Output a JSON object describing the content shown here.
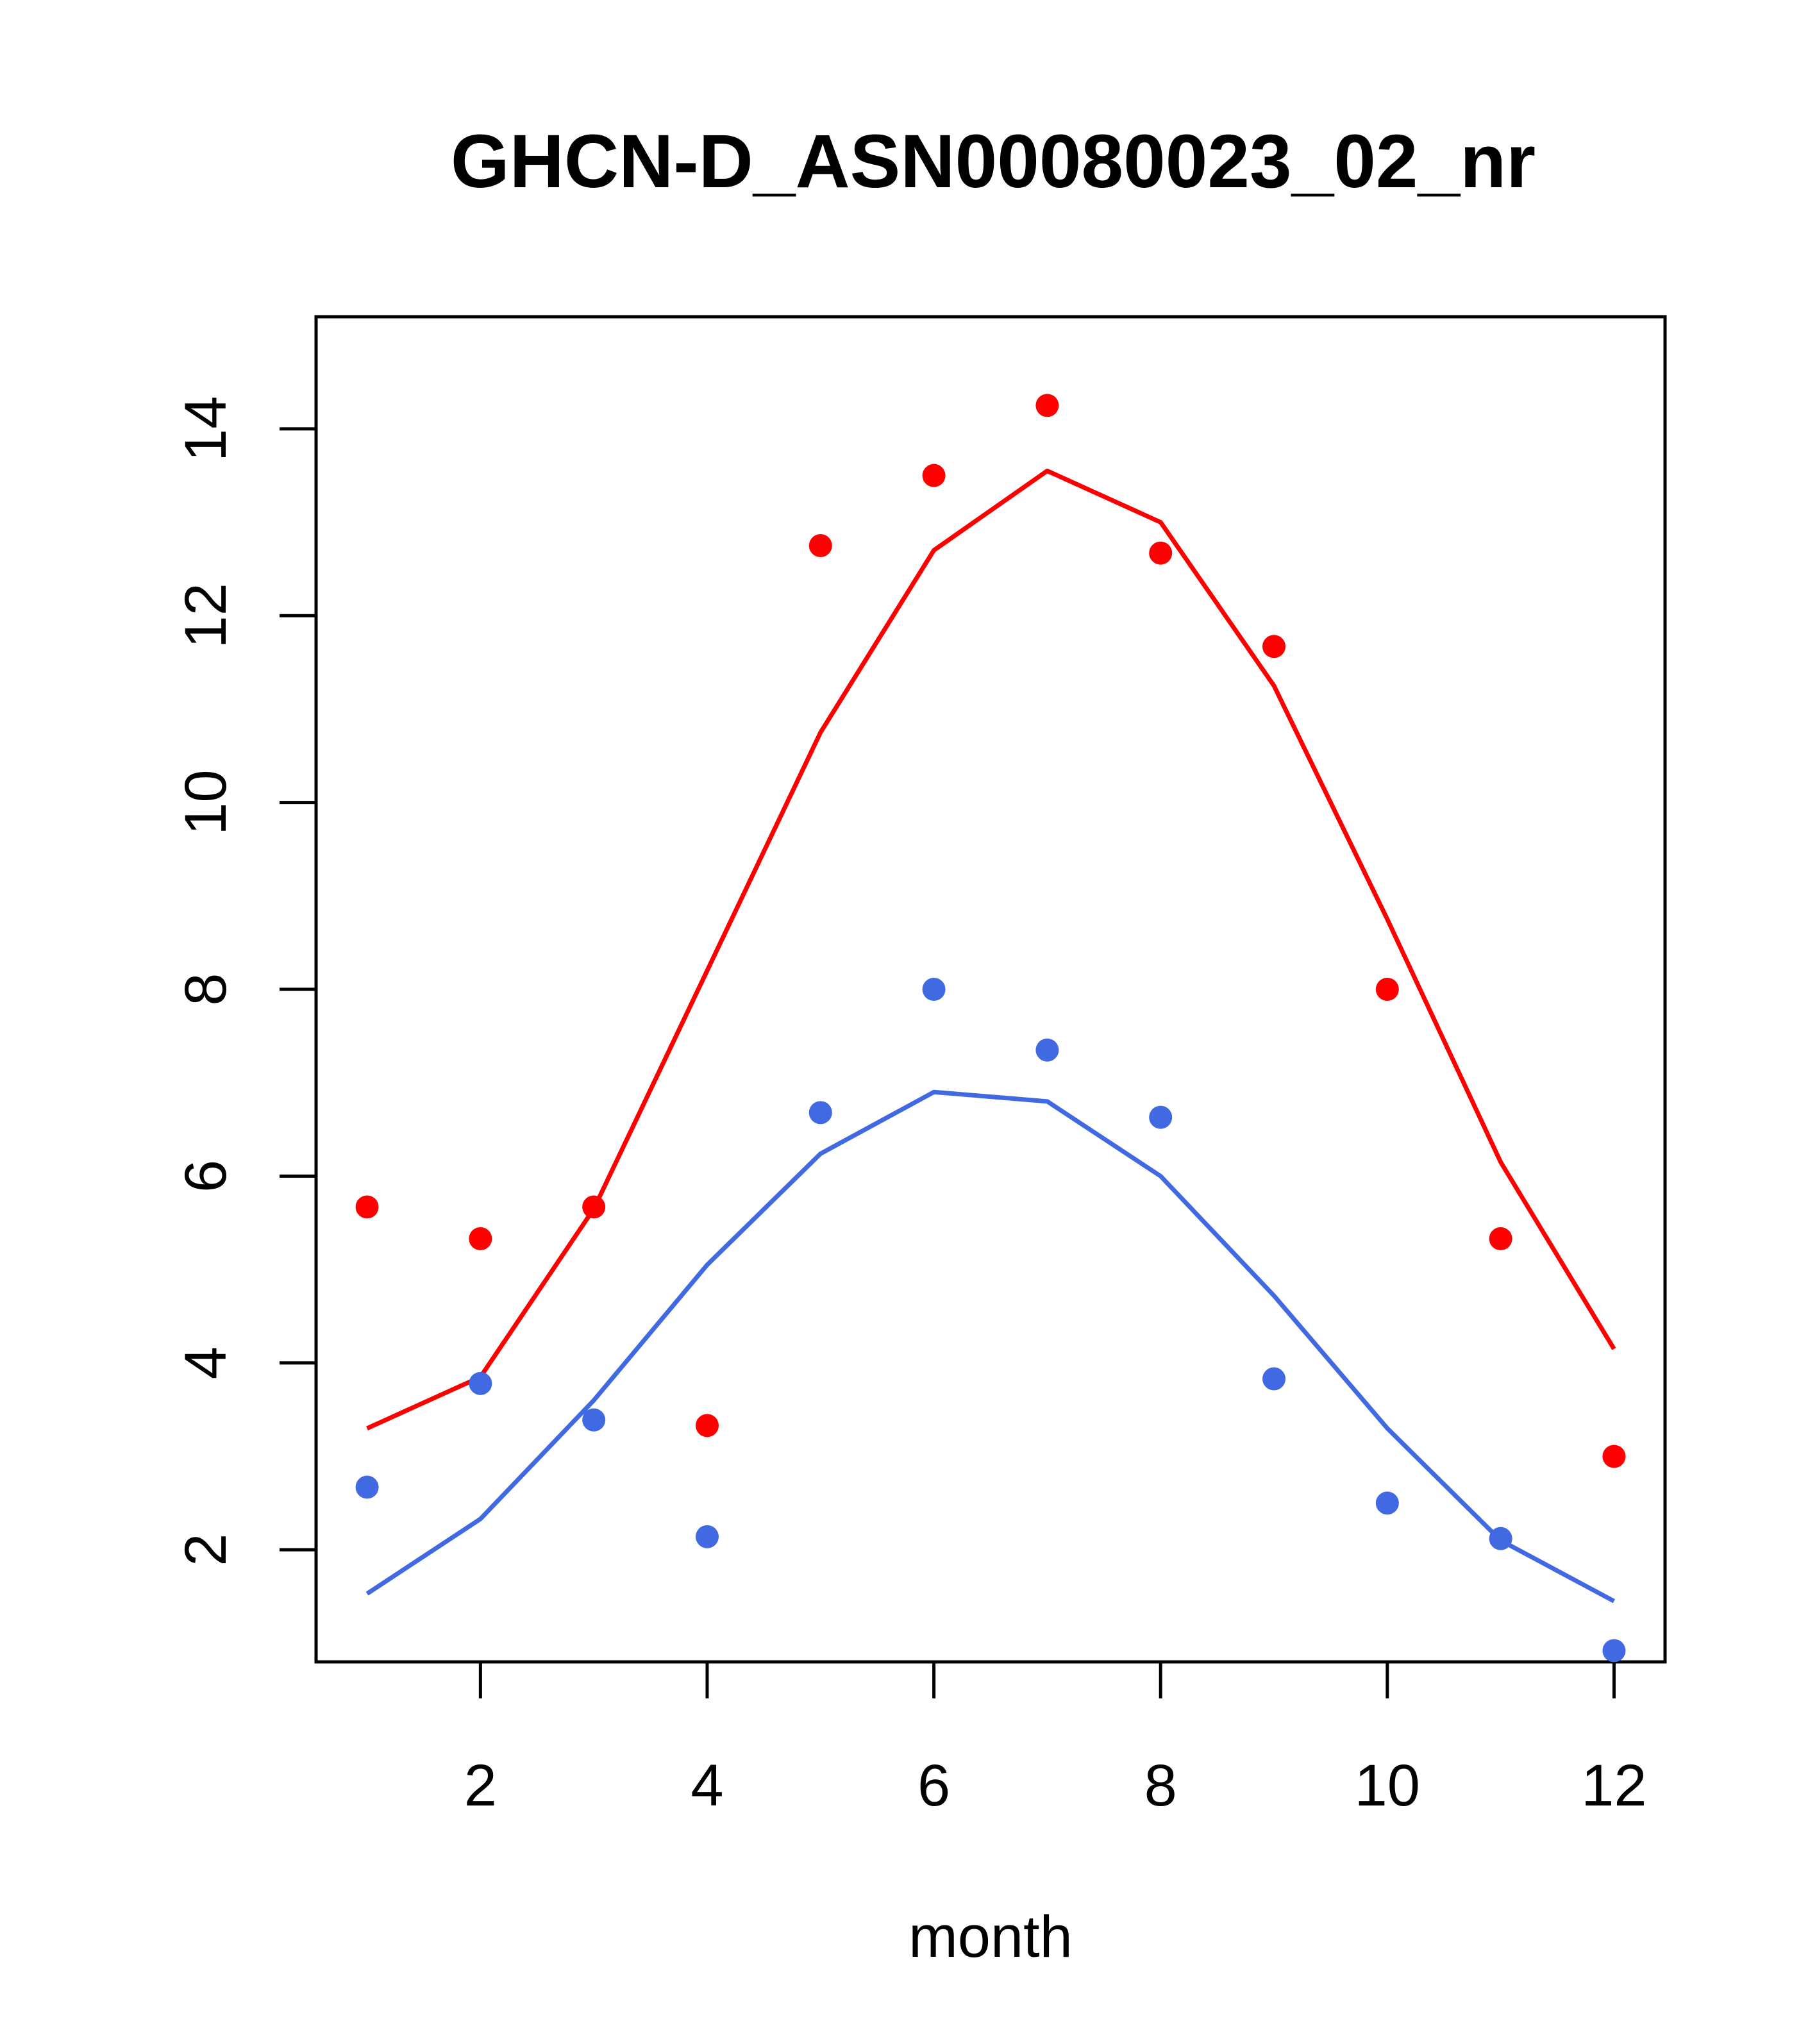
{
  "chart_data": {
    "type": "line",
    "title": "GHCN-D_ASN00080023_02_nr",
    "xlabel": "month",
    "ylabel": "",
    "xlim": [
      0.55,
      12.45
    ],
    "ylim": [
      0.8,
      15.2
    ],
    "xticks": [
      2,
      4,
      6,
      8,
      10,
      12
    ],
    "yticks": [
      2,
      4,
      6,
      8,
      10,
      12,
      14
    ],
    "grid": false,
    "legend": "none",
    "series": [
      {
        "color": "#ff0000",
        "points_x": [
          1,
          2,
          3,
          4,
          5,
          6,
          7,
          8,
          9,
          10,
          11,
          12
        ],
        "points_y": [
          5.67,
          5.33,
          5.67,
          3.33,
          12.75,
          13.5,
          14.25,
          12.67,
          11.67,
          8.0,
          5.33,
          3.0
        ],
        "line_x": [
          1,
          2,
          3,
          4,
          5,
          6,
          7,
          8,
          9,
          10,
          11,
          12
        ],
        "line_y": [
          3.3,
          3.85,
          5.65,
          8.2,
          10.75,
          12.7,
          13.55,
          13.0,
          11.25,
          8.75,
          6.15,
          4.15
        ]
      },
      {
        "color": "#4169e1",
        "points_x": [
          1,
          2,
          3,
          4,
          5,
          6,
          7,
          8,
          9,
          10,
          11,
          12
        ],
        "points_y": [
          2.67,
          3.78,
          3.39,
          2.14,
          6.68,
          8.0,
          7.35,
          6.63,
          3.83,
          2.5,
          2.12,
          0.92
        ],
        "line_x": [
          1,
          2,
          3,
          4,
          5,
          6,
          7,
          8,
          9,
          10,
          11,
          12
        ],
        "line_y": [
          1.53,
          2.33,
          3.6,
          5.05,
          6.24,
          6.9,
          6.8,
          6.0,
          4.72,
          3.3,
          2.1,
          1.45
        ]
      }
    ]
  }
}
